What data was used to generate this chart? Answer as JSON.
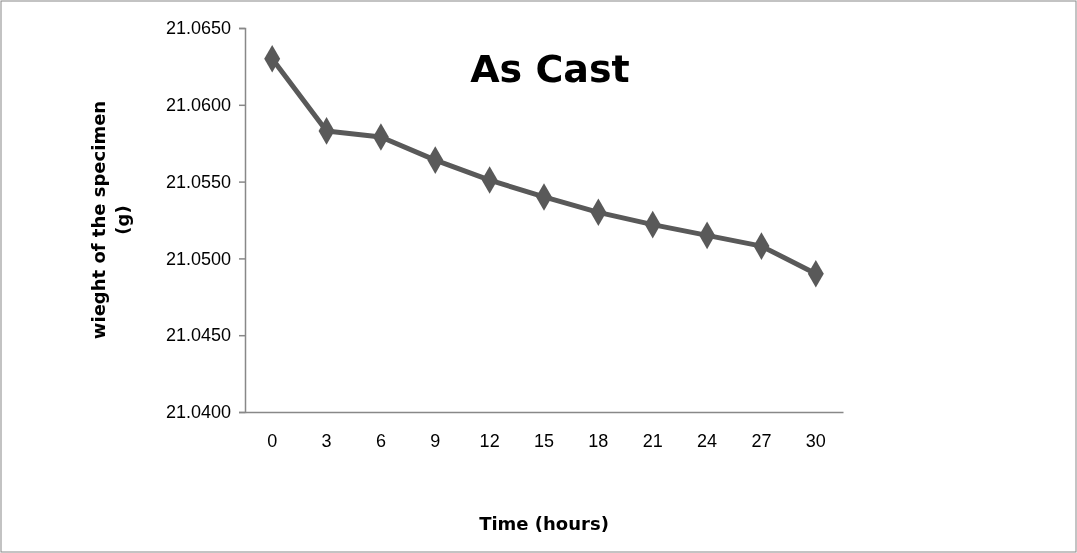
{
  "chart_data": {
    "type": "line",
    "title": "As Cast",
    "xlabel": "Time (hours)",
    "ylabel": "wieght of the specimen (g)",
    "categories": [
      "0",
      "3",
      "6",
      "9",
      "12",
      "15",
      "18",
      "21",
      "24",
      "27",
      "30"
    ],
    "series": [
      {
        "color": "#595959",
        "values": [
          21.063,
          21.0583,
          21.0579,
          21.0564,
          21.0551,
          21.054,
          21.053,
          21.0522,
          21.0515,
          21.0508,
          21.049
        ]
      }
    ],
    "ylim": [
      21.04,
      21.065
    ],
    "yticks": [
      {
        "value": 21.04,
        "label": "21.0400"
      },
      {
        "value": 21.045,
        "label": "21.0450"
      },
      {
        "value": 21.05,
        "label": "21.0500"
      },
      {
        "value": 21.055,
        "label": "21.0550"
      },
      {
        "value": 21.06,
        "label": "21.0600"
      },
      {
        "value": 21.065,
        "label": "21.0650"
      }
    ],
    "marker": "diamond",
    "line_style": "solid",
    "grid": false
  }
}
